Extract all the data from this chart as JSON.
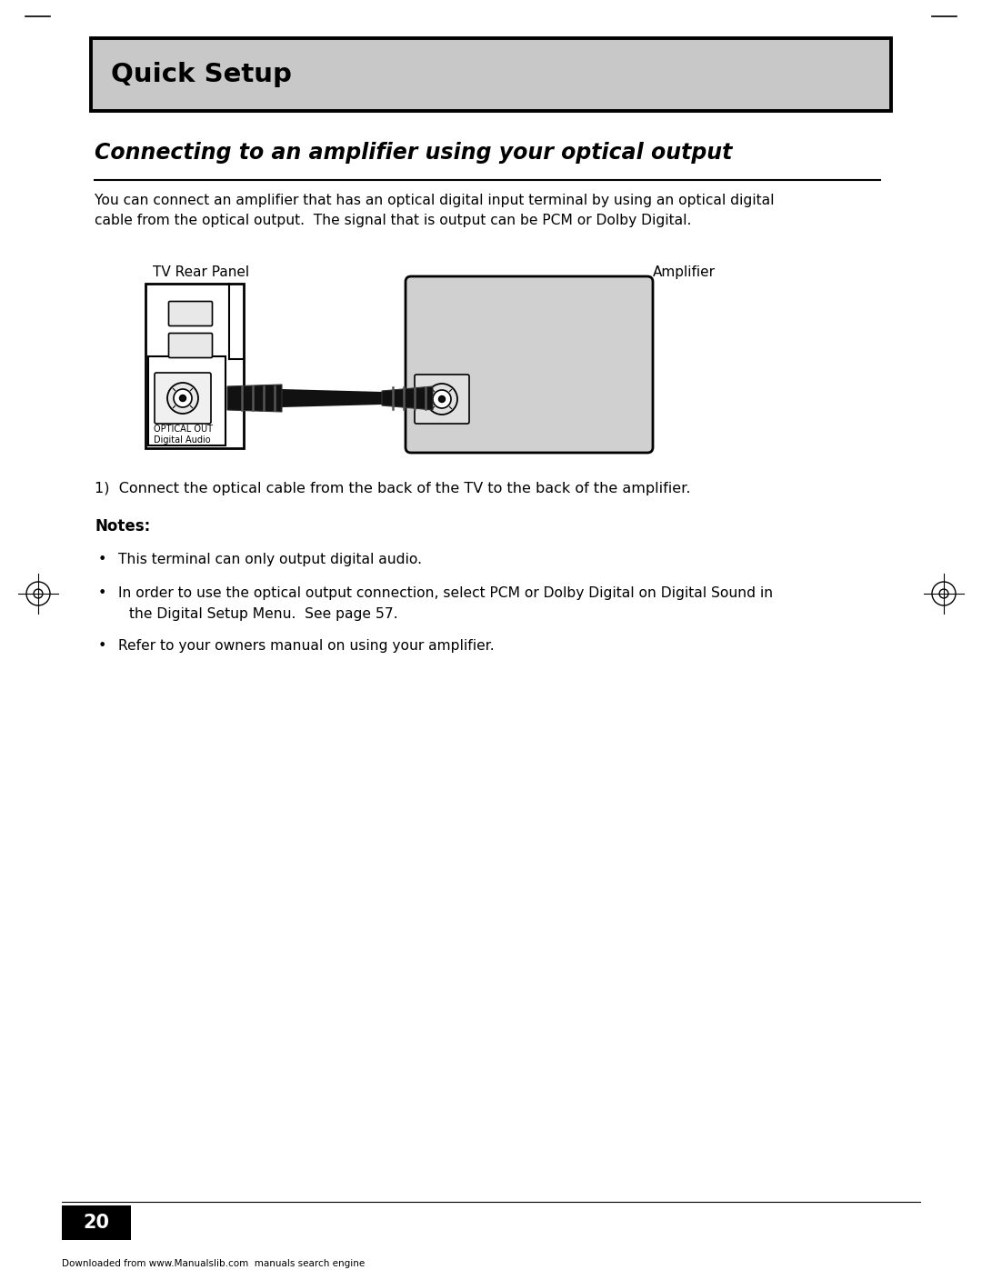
{
  "page_bg": "#ffffff",
  "header_bg": "#c8c8c8",
  "header_text": "Quick Setup",
  "header_text_color": "#000000",
  "title_text": "Connecting to an amplifier using your optical output",
  "title_color": "#000000",
  "body_text": "You can connect an amplifier that has an optical digital input terminal by using an optical digital\ncable from the optical output.  The signal that is output can be PCM or Dolby Digital.",
  "tv_label": "TV Rear Panel",
  "amplifier_label": "Amplifier",
  "optical_out_label": "OPTICAL OUT\nDigital Audio",
  "step1_text": "1)  Connect the optical cable from the back of the TV to the back of the amplifier.",
  "notes_label": "Notes:",
  "bullet1": "This terminal can only output digital audio.",
  "bullet2_line1": "In order to use the optical output connection, select PCM or Dolby Digital on Digital Sound in",
  "bullet2_line2": "  the Digital Setup Menu.  See page 57.",
  "bullet3": "Refer to your owners manual on using your amplifier.",
  "page_number": "20",
  "footer_text": "Downloaded from www.Manualslib.com  manuals search engine"
}
